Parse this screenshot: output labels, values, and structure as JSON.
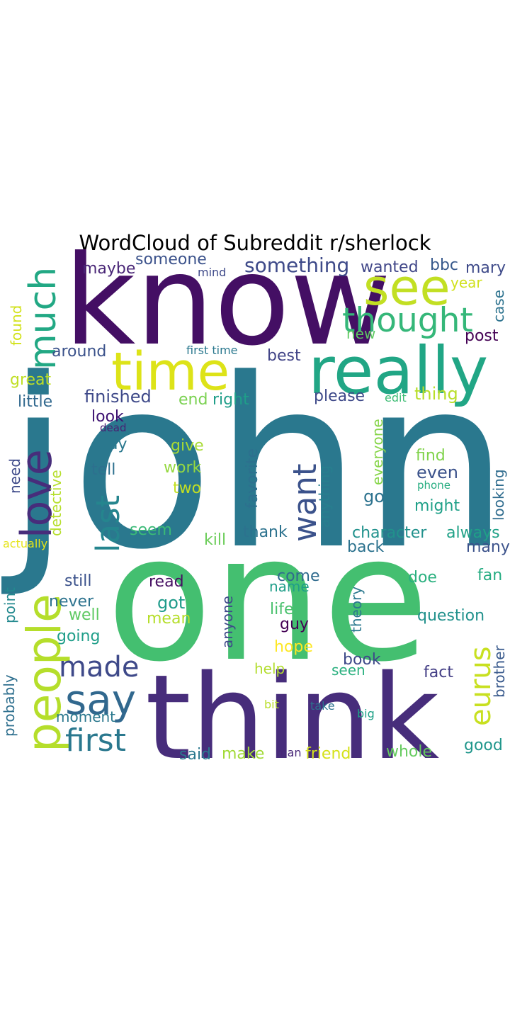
{
  "title": "WordCloud of Subreddit r/sherlock",
  "palette": "viridis",
  "words": [
    {
      "text": "john",
      "color": "#2a788e"
    },
    {
      "text": "one",
      "color": "#44bf70"
    },
    {
      "text": "know",
      "color": "#440f64"
    },
    {
      "text": "think",
      "color": "#472d7b"
    },
    {
      "text": "really",
      "color": "#21a685"
    },
    {
      "text": "time",
      "color": "#dde318"
    },
    {
      "text": "see",
      "color": "#c2df23"
    },
    {
      "text": "people",
      "color": "#b5de2b"
    },
    {
      "text": "love",
      "color": "#472d7b"
    },
    {
      "text": "much",
      "color": "#22a884"
    },
    {
      "text": "thought",
      "color": "#35b779"
    },
    {
      "text": "say",
      "color": "#31688e"
    },
    {
      "text": "last",
      "color": "#25858e"
    },
    {
      "text": "want",
      "color": "#3b528b"
    },
    {
      "text": "made",
      "color": "#3e4989"
    },
    {
      "text": "first",
      "color": "#2a788e"
    },
    {
      "text": "eurus",
      "color": "#c8e020"
    },
    {
      "text": "something",
      "color": "#3e4a89"
    },
    {
      "text": "maybe",
      "color": "#482576"
    },
    {
      "text": "someone",
      "color": "#3b528b"
    },
    {
      "text": "mind",
      "color": "#3e4989"
    },
    {
      "text": "wanted",
      "color": "#404688"
    },
    {
      "text": "bbc",
      "color": "#38598c"
    },
    {
      "text": "mary",
      "color": "#3e4a89"
    },
    {
      "text": "year",
      "color": "#d0e11c"
    },
    {
      "text": "case",
      "color": "#2c728e"
    },
    {
      "text": "found",
      "color": "#d2e21b"
    },
    {
      "text": "new",
      "color": "#5ec962"
    },
    {
      "text": "post",
      "color": "#440154"
    },
    {
      "text": "around",
      "color": "#3b528b"
    },
    {
      "text": "first time",
      "color": "#2a788e"
    },
    {
      "text": "best",
      "color": "#414487"
    },
    {
      "text": "great",
      "color": "#c0df25"
    },
    {
      "text": "little",
      "color": "#31688e"
    },
    {
      "text": "finished",
      "color": "#3e4989"
    },
    {
      "text": "end",
      "color": "#7ad151"
    },
    {
      "text": "right",
      "color": "#1f9e89"
    },
    {
      "text": "please",
      "color": "#3e4989"
    },
    {
      "text": "edit",
      "color": "#3dbc74"
    },
    {
      "text": "thing",
      "color": "#b8de29"
    },
    {
      "text": "look",
      "color": "#3b0f70"
    },
    {
      "text": "dead",
      "color": "#482173"
    },
    {
      "text": "way",
      "color": "#2a788e"
    },
    {
      "text": "give",
      "color": "#a8db34"
    },
    {
      "text": "favorite",
      "color": "#2d708e"
    },
    {
      "text": "everyone",
      "color": "#86d549"
    },
    {
      "text": "find",
      "color": "#80d34b"
    },
    {
      "text": "need",
      "color": "#3e4a89"
    },
    {
      "text": "detective",
      "color": "#b5de2b"
    },
    {
      "text": "tell",
      "color": "#2d708e"
    },
    {
      "text": "work",
      "color": "#95d840"
    },
    {
      "text": "anything",
      "color": "#277f8e"
    },
    {
      "text": "even",
      "color": "#3b528b"
    },
    {
      "text": "phone",
      "color": "#27ad81"
    },
    {
      "text": "two",
      "color": "#c2df23"
    },
    {
      "text": "go",
      "color": "#2c728e"
    },
    {
      "text": "might",
      "color": "#1fa088"
    },
    {
      "text": "looking",
      "color": "#2f6c8e"
    },
    {
      "text": "seem",
      "color": "#3aba76"
    },
    {
      "text": "thank",
      "color": "#2c728e"
    },
    {
      "text": "character",
      "color": "#21918c"
    },
    {
      "text": "always",
      "color": "#1fa187"
    },
    {
      "text": "actually",
      "color": "#e5e419"
    },
    {
      "text": "kill",
      "color": "#6ccd5a"
    },
    {
      "text": "back",
      "color": "#2c728e"
    },
    {
      "text": "many",
      "color": "#3b528b"
    },
    {
      "text": "still",
      "color": "#3b528b"
    },
    {
      "text": "read",
      "color": "#471063"
    },
    {
      "text": "come",
      "color": "#2f6b8e"
    },
    {
      "text": "doe",
      "color": "#2ab07f"
    },
    {
      "text": "fan",
      "color": "#25ac82"
    },
    {
      "text": "point",
      "color": "#23898e"
    },
    {
      "text": "got",
      "color": "#1e9b8a"
    },
    {
      "text": "name",
      "color": "#1f9e89"
    },
    {
      "text": "never",
      "color": "#2c728e"
    },
    {
      "text": "anyone",
      "color": "#3e4989"
    },
    {
      "text": "theory",
      "color": "#2a788e"
    },
    {
      "text": "life",
      "color": "#4ac16d"
    },
    {
      "text": "question",
      "color": "#21918c"
    },
    {
      "text": "well",
      "color": "#5ec962"
    },
    {
      "text": "mean",
      "color": "#b5de2b"
    },
    {
      "text": "guy",
      "color": "#440154"
    },
    {
      "text": "going",
      "color": "#1f9e89"
    },
    {
      "text": "hope",
      "color": "#fde725"
    },
    {
      "text": "brother",
      "color": "#38598c"
    },
    {
      "text": "book",
      "color": "#3e4989"
    },
    {
      "text": "probably",
      "color": "#2e6f8e"
    },
    {
      "text": "help",
      "color": "#b2dd2d"
    },
    {
      "text": "seen",
      "color": "#2ab07f"
    },
    {
      "text": "fact",
      "color": "#433e85"
    },
    {
      "text": "moment",
      "color": "#2a788e"
    },
    {
      "text": "bit",
      "color": "#b8de29"
    },
    {
      "text": "take",
      "color": "#2c728e"
    },
    {
      "text": "big",
      "color": "#1fa187"
    },
    {
      "text": "good",
      "color": "#1f968b"
    },
    {
      "text": "said",
      "color": "#2a788e"
    },
    {
      "text": "make",
      "color": "#a2da37"
    },
    {
      "text": "man",
      "color": "#482878"
    },
    {
      "text": "friend",
      "color": "#d5e21a"
    },
    {
      "text": "whole",
      "color": "#65cb5e"
    }
  ]
}
